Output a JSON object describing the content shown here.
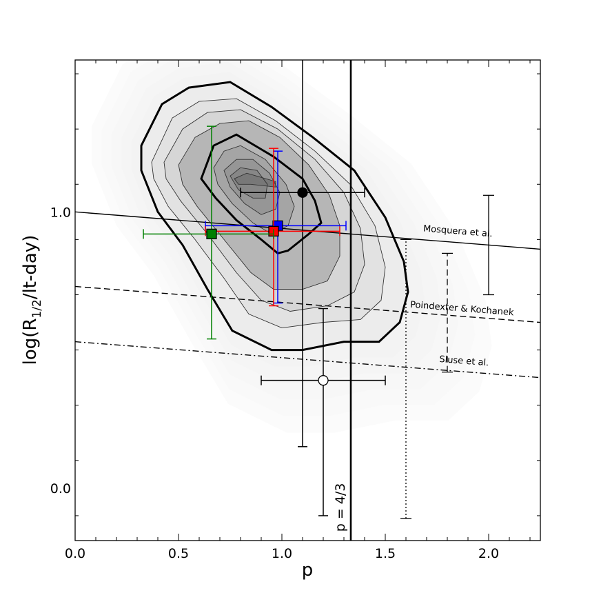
{
  "chart_data": {
    "type": "scatter",
    "xlabel": "p",
    "ylabel_main": "log(R",
    "ylabel_sub": "1/2",
    "ylabel_rest": "/lt-day)",
    "xlim": [
      0.0,
      2.25
    ],
    "ylim": [
      -0.19,
      1.55
    ],
    "x_ticks": [
      0.0,
      0.5,
      1.0,
      1.5,
      2.0
    ],
    "x_tick_labels": [
      "0.0",
      "0.5",
      "1.0",
      "1.5",
      "2.0"
    ],
    "y_ticks": [
      0.0,
      1.0
    ],
    "y_tick_labels": [
      "0.0",
      "1.0"
    ],
    "grid": false,
    "background_density": {
      "description_levels": 9,
      "peak": [
        0.8,
        1.1
      ],
      "contours": {
        "outer_bold": [
          [
            0.32,
            1.24
          ],
          [
            0.42,
            1.39
          ],
          [
            0.55,
            1.45
          ],
          [
            0.75,
            1.47
          ],
          [
            0.95,
            1.38
          ],
          [
            1.15,
            1.27
          ],
          [
            1.35,
            1.15
          ],
          [
            1.5,
            0.98
          ],
          [
            1.59,
            0.82
          ],
          [
            1.61,
            0.71
          ],
          [
            1.57,
            0.6
          ],
          [
            1.47,
            0.53
          ],
          [
            1.3,
            0.53
          ],
          [
            1.1,
            0.5
          ],
          [
            0.95,
            0.5
          ],
          [
            0.76,
            0.57
          ],
          [
            0.64,
            0.72
          ],
          [
            0.52,
            0.88
          ],
          [
            0.4,
            1.0
          ],
          [
            0.32,
            1.15
          ]
        ],
        "inner_bold": [
          [
            0.61,
            1.12
          ],
          [
            0.67,
            1.24
          ],
          [
            0.78,
            1.28
          ],
          [
            0.96,
            1.2
          ],
          [
            1.1,
            1.12
          ],
          [
            1.16,
            1.04
          ],
          [
            1.19,
            0.96
          ],
          [
            1.13,
            0.92
          ],
          [
            1.03,
            0.86
          ],
          [
            0.98,
            0.85
          ],
          [
            0.9,
            0.9
          ],
          [
            0.78,
            0.97
          ],
          [
            0.68,
            1.05
          ]
        ],
        "thin": [
          [
            [
              0.37,
              1.18
            ],
            [
              0.47,
              1.34
            ],
            [
              0.6,
              1.4
            ],
            [
              0.78,
              1.41
            ],
            [
              0.97,
              1.33
            ],
            [
              1.16,
              1.22
            ],
            [
              1.33,
              1.1
            ],
            [
              1.45,
              0.95
            ],
            [
              1.5,
              0.8
            ],
            [
              1.48,
              0.68
            ],
            [
              1.38,
              0.61
            ],
            [
              1.2,
              0.6
            ],
            [
              1.0,
              0.58
            ],
            [
              0.84,
              0.63
            ],
            [
              0.72,
              0.76
            ],
            [
              0.58,
              0.9
            ],
            [
              0.45,
              1.02
            ],
            [
              0.38,
              1.12
            ]
          ],
          [
            [
              0.43,
              1.18
            ],
            [
              0.52,
              1.3
            ],
            [
              0.64,
              1.36
            ],
            [
              0.8,
              1.37
            ],
            [
              0.98,
              1.3
            ],
            [
              1.16,
              1.19
            ],
            [
              1.3,
              1.07
            ],
            [
              1.38,
              0.94
            ],
            [
              1.4,
              0.81
            ],
            [
              1.35,
              0.71
            ],
            [
              1.22,
              0.66
            ],
            [
              1.04,
              0.64
            ],
            [
              0.9,
              0.68
            ],
            [
              0.78,
              0.78
            ],
            [
              0.64,
              0.92
            ],
            [
              0.51,
              1.04
            ],
            [
              0.44,
              1.12
            ]
          ],
          [
            [
              0.5,
              1.17
            ],
            [
              0.58,
              1.27
            ],
            [
              0.7,
              1.32
            ],
            [
              0.84,
              1.33
            ],
            [
              0.99,
              1.27
            ],
            [
              1.13,
              1.17
            ],
            [
              1.23,
              1.06
            ],
            [
              1.28,
              0.95
            ],
            [
              1.28,
              0.84
            ],
            [
              1.22,
              0.75
            ],
            [
              1.1,
              0.72
            ],
            [
              0.96,
              0.72
            ],
            [
              0.85,
              0.78
            ],
            [
              0.72,
              0.9
            ],
            [
              0.59,
              1.02
            ],
            [
              0.52,
              1.1
            ]
          ],
          [
            [
              0.67,
              1.16
            ],
            [
              0.72,
              1.22
            ],
            [
              0.8,
              1.24
            ],
            [
              0.92,
              1.19
            ],
            [
              1.02,
              1.1
            ],
            [
              1.06,
              1.02
            ],
            [
              1.03,
              0.95
            ],
            [
              0.95,
              0.92
            ],
            [
              0.86,
              0.96
            ],
            [
              0.76,
              1.03
            ],
            [
              0.69,
              1.1
            ]
          ],
          [
            [
              0.72,
              1.15
            ],
            [
              0.78,
              1.19
            ],
            [
              0.86,
              1.19
            ],
            [
              0.94,
              1.14
            ],
            [
              0.99,
              1.07
            ],
            [
              0.97,
              1.01
            ],
            [
              0.9,
              0.99
            ],
            [
              0.82,
              1.03
            ],
            [
              0.75,
              1.09
            ]
          ],
          [
            [
              0.75,
              1.13
            ],
            [
              0.8,
              1.16
            ],
            [
              0.88,
              1.15
            ],
            [
              0.93,
              1.1
            ],
            [
              0.92,
              1.05
            ],
            [
              0.86,
              1.05
            ],
            [
              0.79,
              1.08
            ]
          ],
          [
            [
              0.77,
              1.12
            ],
            [
              0.83,
              1.14
            ],
            [
              0.97,
              1.11
            ],
            [
              0.97,
              1.09
            ],
            [
              0.85,
              1.1
            ],
            [
              0.79,
              1.1
            ]
          ]
        ]
      }
    },
    "points": [
      {
        "name": "black-filled-circle",
        "marker": "circle",
        "fill": "#000000",
        "x": 1.1,
        "y": 1.07,
        "xerr": [
          0.3,
          0.3
        ],
        "yerr": [
          0.92,
          0.53
        ],
        "color": "#000000"
      },
      {
        "name": "white-open-circle",
        "marker": "circle",
        "fill": "#ffffff",
        "x": 1.2,
        "y": 0.39,
        "xerr": [
          0.3,
          0.3
        ],
        "yerr": [
          0.49,
          0.26
        ],
        "color": "#000000"
      },
      {
        "name": "blue-square",
        "marker": "square",
        "fill": "#0000ff",
        "x": 0.98,
        "y": 0.95,
        "xerr": [
          0.35,
          0.33
        ],
        "yerr": [
          0.28,
          0.27
        ],
        "color": "#0000ff"
      },
      {
        "name": "red-square",
        "marker": "square",
        "fill": "#ff0000",
        "x": 0.96,
        "y": 0.93,
        "xerr": [
          0.33,
          0.32
        ],
        "yerr": [
          0.27,
          0.3
        ],
        "color": "#ff0000"
      },
      {
        "name": "green-square",
        "marker": "square",
        "fill": "#008000",
        "x": 0.66,
        "y": 0.92,
        "xerr": [
          0.33,
          0.3
        ],
        "yerr": [
          0.38,
          0.39
        ],
        "color": "#008000"
      }
    ],
    "vertical_line": {
      "x": 1.3333,
      "label": "p = 4/3"
    },
    "relations": [
      {
        "name": "Mosquera et al.",
        "style": "solid",
        "x": [
          0.0,
          2.25
        ],
        "y": [
          1.0,
          0.865
        ],
        "label_x": 1.85,
        "label_y": 0.92
      },
      {
        "name": "Poindexter & Kochanek",
        "style": "dashed",
        "x": [
          0.0,
          2.25
        ],
        "y": [
          0.73,
          0.6
        ],
        "label_x": 1.87,
        "label_y": 0.64
      },
      {
        "name": "Sluse et al.",
        "style": "dashdot",
        "x": [
          0.0,
          2.25
        ],
        "y": [
          0.53,
          0.4
        ],
        "label_x": 1.88,
        "label_y": 0.45
      }
    ],
    "relation_errors": [
      {
        "name": "mosquera-errorbar",
        "style": "solid",
        "x": 2.0,
        "y_low": 0.7,
        "y_high": 1.06
      },
      {
        "name": "poindexter-errorbar",
        "style": "dashed",
        "x": 1.8,
        "y_low": 0.42,
        "y_high": 0.85
      },
      {
        "name": "sluse-errorbar",
        "style": "dotted",
        "x": 1.6,
        "y_low": -0.11,
        "y_high": 0.9
      }
    ],
    "colors": {
      "contour": "#000000",
      "density_base": "#f2f2f2",
      "density_peak": "#777777"
    }
  }
}
